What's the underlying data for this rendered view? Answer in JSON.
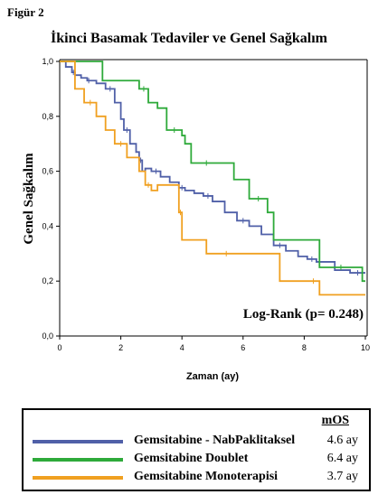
{
  "figure_label": "Figür 2",
  "colors": {
    "nab": "#5060a8",
    "doublet": "#2eaa3a",
    "mono": "#f0a020"
  },
  "chart_data": {
    "type": "line",
    "title": "İkinci Basamak Tedaviler ve Genel Sağkalım",
    "xlabel": "Zaman (ay)",
    "ylabel": "Genel Sağkalım",
    "xlim": [
      0,
      10
    ],
    "ylim": [
      0,
      1
    ],
    "x_ticks": [
      0,
      2,
      4,
      6,
      8,
      10
    ],
    "y_ticks": [
      0.0,
      0.2,
      0.4,
      0.6,
      0.8,
      1.0
    ],
    "x_tick_labels": [
      "0",
      "2",
      "4",
      "6",
      "8",
      "10"
    ],
    "y_tick_labels": [
      "0,0",
      "0,2",
      "0,4",
      "0,6",
      "0,8",
      "1,0"
    ],
    "grid": false,
    "legend_position": "below",
    "annotation": "Log-Rank (p= 0.248)",
    "series": [
      {
        "name": "Gemsitabine - NabPaklitaksel",
        "color": "#5060a8",
        "step_x": [
          0,
          0.2,
          0.4,
          0.5,
          0.7,
          0.9,
          1.0,
          1.2,
          1.5,
          1.8,
          2.0,
          2.1,
          2.3,
          2.5,
          2.6,
          2.7,
          2.8,
          3.0,
          3.3,
          3.6,
          3.9,
          4.1,
          4.4,
          4.7,
          5.0,
          5.4,
          5.8,
          6.2,
          6.6,
          7.0,
          7.4,
          7.8,
          8.1,
          8.4,
          9.0,
          9.5,
          10.0
        ],
        "step_y": [
          1.0,
          0.98,
          0.96,
          0.95,
          0.94,
          0.93,
          0.93,
          0.92,
          0.9,
          0.85,
          0.79,
          0.75,
          0.7,
          0.67,
          0.64,
          0.6,
          0.61,
          0.6,
          0.58,
          0.56,
          0.54,
          0.53,
          0.52,
          0.51,
          0.49,
          0.45,
          0.42,
          0.4,
          0.37,
          0.33,
          0.31,
          0.29,
          0.28,
          0.27,
          0.24,
          0.23,
          0.23
        ],
        "mOS": "4.6 ay"
      },
      {
        "name": "Gemsitabine Doublet",
        "color": "#2eaa3a",
        "step_x": [
          0,
          1.4,
          2.6,
          2.9,
          3.2,
          3.5,
          4.0,
          4.1,
          4.3,
          5.3,
          5.7,
          6.2,
          6.8,
          7.0,
          8.5,
          9.9,
          10.0
        ],
        "step_y": [
          1.0,
          0.93,
          0.9,
          0.85,
          0.83,
          0.75,
          0.73,
          0.7,
          0.63,
          0.63,
          0.57,
          0.5,
          0.45,
          0.35,
          0.25,
          0.2,
          0.2
        ],
        "mOS": "6.4 ay"
      },
      {
        "name": "Gemsitabine Monoterapisi",
        "color": "#f0a020",
        "step_x": [
          0,
          0.5,
          0.8,
          1.2,
          1.5,
          1.8,
          2.2,
          2.6,
          2.8,
          3.0,
          3.2,
          3.9,
          4.0,
          4.4,
          4.8,
          6.1,
          7.2,
          8.1,
          8.5,
          10.0
        ],
        "step_y": [
          1.0,
          0.9,
          0.85,
          0.8,
          0.75,
          0.7,
          0.65,
          0.6,
          0.55,
          0.53,
          0.55,
          0.45,
          0.35,
          0.35,
          0.3,
          0.3,
          0.2,
          0.2,
          0.15,
          0.15
        ],
        "mOS": "3.7 ay"
      }
    ]
  },
  "legend": {
    "header": "mOS",
    "rows": [
      {
        "label": "Gemsitabine - NabPaklitaksel",
        "mos": "4.6 ay",
        "color": "#5060a8"
      },
      {
        "label": "Gemsitabine Doublet",
        "mos": "6.4 ay",
        "color": "#2eaa3a"
      },
      {
        "label": "Gemsitabine Monoterapisi",
        "mos": "3.7 ay",
        "color": "#f0a020"
      }
    ]
  }
}
